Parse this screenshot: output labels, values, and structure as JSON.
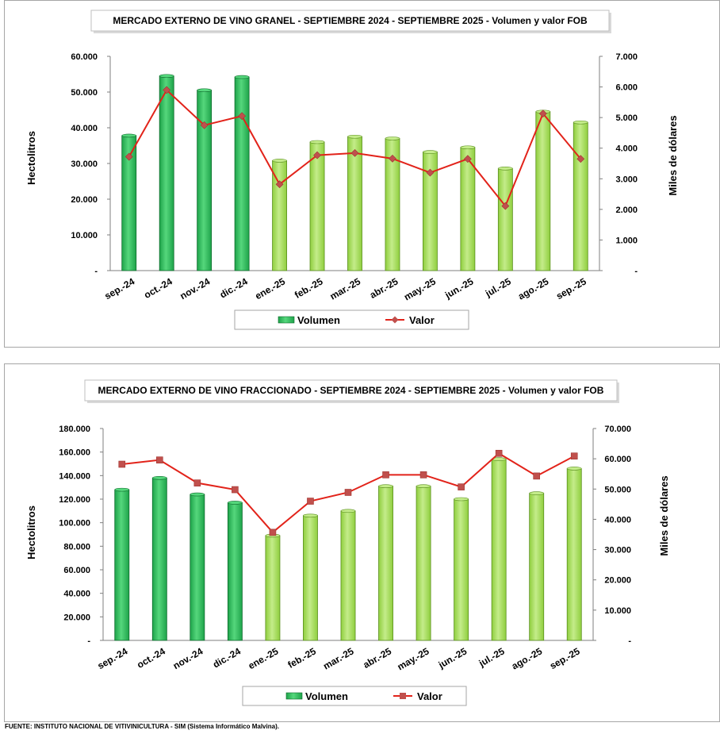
{
  "chart_data": [
    {
      "type": "bar",
      "title": "MERCADO EXTERNO DE VINO GRANEL - SEPTIEMBRE 2024 - SEPTIEMBRE 2025 - Volumen y valor FOB",
      "categories": [
        "sep.-24",
        "oct.-24",
        "nov.-24",
        "dic.-24",
        "ene.-25",
        "feb.-25",
        "mar.-25",
        "abr.-25",
        "may.-25",
        "jun.-25",
        "jul.-25",
        "ago.-25",
        "sep.-25"
      ],
      "series": [
        {
          "name": "Volumen",
          "type": "bar",
          "axis": "left",
          "values": [
            37800,
            54500,
            50500,
            54200,
            30800,
            36000,
            37500,
            37000,
            33200,
            34500,
            28600,
            44500,
            41500
          ]
        },
        {
          "name": "Valor",
          "type": "line",
          "axis": "right",
          "values": [
            3720,
            5900,
            4750,
            5050,
            2820,
            3770,
            3840,
            3660,
            3200,
            3650,
            2110,
            5130,
            3650
          ]
        }
      ],
      "ylabel": "Hectolitros",
      "y2label": "Miles de dólares",
      "ylim": [
        0,
        60000
      ],
      "y2lim": [
        0,
        7000
      ],
      "yticks": [
        "-",
        "10.000",
        "20.000",
        "30.000",
        "40.000",
        "50.000",
        "60.000"
      ],
      "y2ticks": [
        "-",
        "1.000",
        "2.000",
        "3.000",
        "4.000",
        "5.000",
        "6.000",
        "7.000"
      ],
      "legend": [
        "Volumen",
        "Valor"
      ],
      "legend_position": "bottom",
      "grid": false
    },
    {
      "type": "bar",
      "title": "MERCADO EXTERNO DE VINO FRACCIONADO - SEPTIEMBRE 2024 - SEPTIEMBRE 2025 - Volumen y valor FOB",
      "categories": [
        "sep.-24",
        "oct.-24",
        "nov.-24",
        "dic.-24",
        "ene.-25",
        "feb.-25",
        "mar.-25",
        "abr.-25",
        "may.-25",
        "jun.-25",
        "jul.-25",
        "ago.-25",
        "sep.-25"
      ],
      "series": [
        {
          "name": "Volumen",
          "type": "bar",
          "axis": "left",
          "values": [
            128000,
            138000,
            124000,
            117000,
            89000,
            106000,
            110000,
            131000,
            131000,
            120000,
            154000,
            125000,
            146000
          ]
        },
        {
          "name": "Valor",
          "type": "line",
          "axis": "right",
          "values": [
            58200,
            59600,
            52000,
            49800,
            35700,
            46000,
            48900,
            54700,
            54700,
            50700,
            61800,
            54300,
            60900
          ]
        }
      ],
      "ylabel": "Hectolitros",
      "y2label": "Miles de dólares",
      "ylim": [
        0,
        180000
      ],
      "y2lim": [
        0,
        70000
      ],
      "yticks": [
        "-",
        "20.000",
        "40.000",
        "60.000",
        "80.000",
        "100.000",
        "120.000",
        "140.000",
        "160.000",
        "180.000"
      ],
      "y2ticks": [
        "-",
        "10.000",
        "20.000",
        "30.000",
        "40.000",
        "50.000",
        "60.000",
        "70.000"
      ],
      "legend": [
        "Volumen",
        "Valor"
      ],
      "legend_position": "bottom",
      "grid": false
    }
  ],
  "footer": "FUENTE: INSTITUTO NACIONAL DE VITIVINICULTURA - SIM (Sistema Informático Malvina).",
  "colors": {
    "bar_dark": "#1ea34a",
    "bar_dark_light": "#55d77c",
    "bar_dark_edge": "#0e6b2c",
    "bar_light": "#8fce3e",
    "bar_light_light": "#c4ec8a",
    "bar_light_edge": "#5a8f1e",
    "line1": "#e2231a",
    "marker1": "#c0504d",
    "line2": "#e2231a",
    "marker2": "#c0504d"
  }
}
